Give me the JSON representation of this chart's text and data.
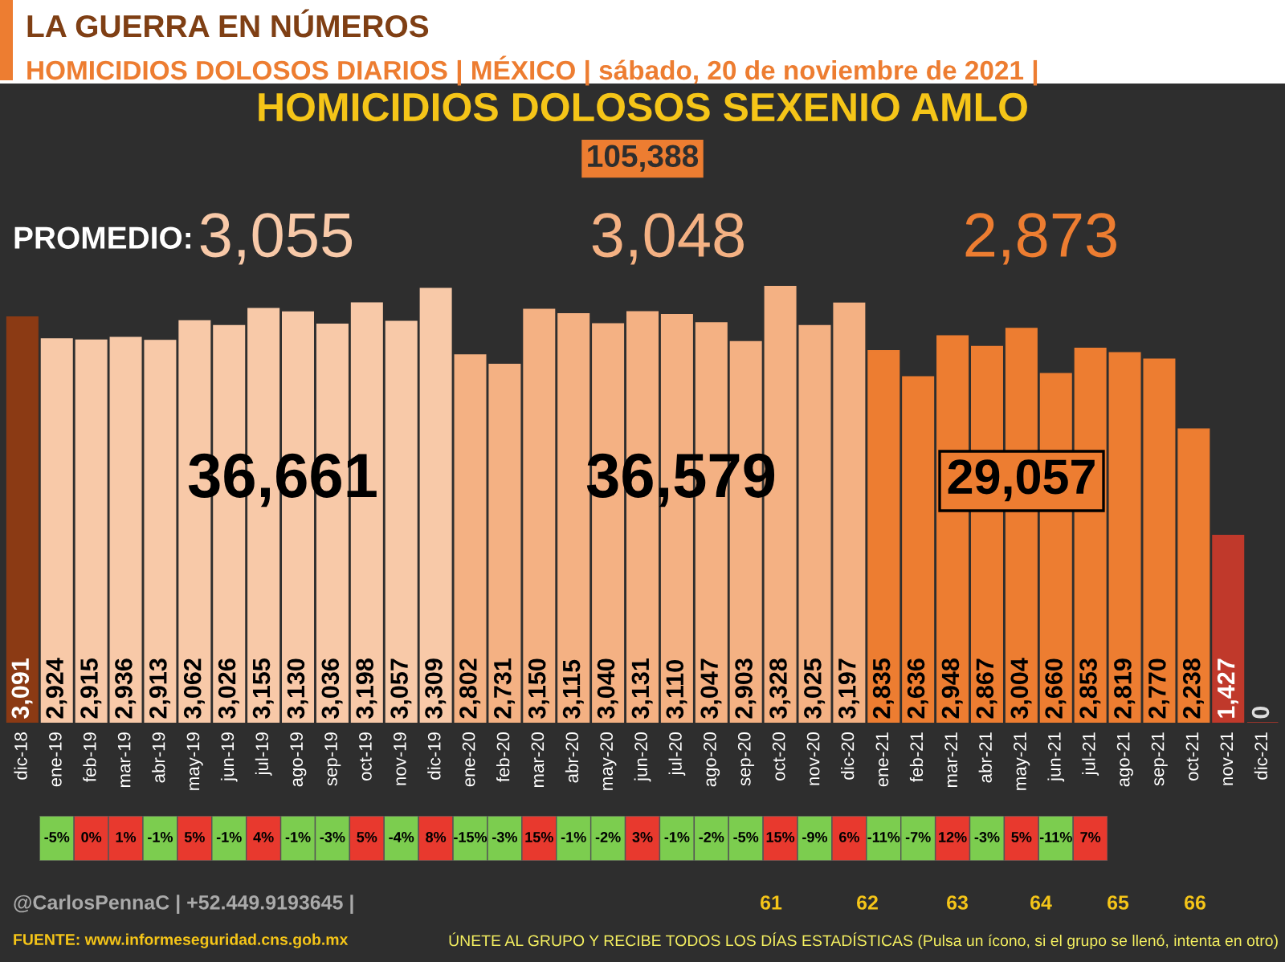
{
  "chart_data": [
    {
      "type": "bar",
      "title": "LA GUERRA EN NÚMEROS",
      "subtitle": "HOMICIDIOS DOLOSOS DIARIOS | MÉXICO | sábado, 20 de noviembre de 2021 |",
      "categories": [
        "dic-18",
        "ene-19",
        "feb-19",
        "mar-19",
        "abr-19",
        "may-19",
        "jun-19",
        "jul-19",
        "ago-19",
        "sep-19",
        "oct-19",
        "nov-19",
        "dic-19",
        "ene-20",
        "feb-20",
        "mar-20",
        "abr-20",
        "may-20",
        "jun-20",
        "jul-20",
        "ago-20",
        "sep-20",
        "oct-20",
        "nov-20",
        "dic-20",
        "ene-21",
        "feb-21",
        "mar-21",
        "abr-21",
        "may-21",
        "jun-21",
        "jul-21",
        "ago-21",
        "sep-21",
        "oct-21",
        "nov-21",
        "dic-21"
      ],
      "values": [
        3091,
        2924,
        2915,
        2936,
        2913,
        3062,
        3026,
        3155,
        3130,
        3036,
        3198,
        3057,
        3309,
        2802,
        2731,
        3150,
        3115,
        3040,
        3131,
        3110,
        3047,
        2903,
        3328,
        3025,
        3197,
        2835,
        2636,
        2948,
        2867,
        3004,
        2660,
        2853,
        2819,
        2770,
        2238,
        1427,
        0
      ],
      "colors": [
        "#8b3a14",
        "#f8c9a8",
        "#f8c9a8",
        "#f8c9a8",
        "#f8c9a8",
        "#f8c9a8",
        "#f8c9a8",
        "#f8c9a8",
        "#f8c9a8",
        "#f8c9a8",
        "#f8c9a8",
        "#f8c9a8",
        "#f8c9a8",
        "#f4b183",
        "#f4b183",
        "#f4b183",
        "#f4b183",
        "#f4b183",
        "#f4b183",
        "#f4b183",
        "#f4b183",
        "#f4b183",
        "#f4b183",
        "#f4b183",
        "#f4b183",
        "#ed7d31",
        "#ed7d31",
        "#ed7d31",
        "#ed7d31",
        "#ed7d31",
        "#ed7d31",
        "#ed7d31",
        "#ed7d31",
        "#ed7d31",
        "#ed7d31",
        "#c0392b",
        "#c0392b"
      ],
      "value_labels": [
        "3,091",
        "2,924",
        "2,915",
        "2,936",
        "2,913",
        "3,062",
        "3,026",
        "3,155",
        "3,130",
        "3,036",
        "3,198",
        "3,057",
        "3,309",
        "2,802",
        "2,731",
        "3,150",
        "3,115",
        "3,040",
        "3,131",
        "3,110",
        "3,047",
        "2,903",
        "3,328",
        "3,025",
        "3,197",
        "2,835",
        "2,636",
        "2,948",
        "2,867",
        "3,004",
        "2,660",
        "2,853",
        "2,819",
        "2,770",
        "2,238",
        "1,427",
        "0"
      ],
      "grid": false,
      "legend": false,
      "annotations": [
        "HOMICIDIOS DOLOSOS SEXENIO AMLO",
        "105,388",
        "PROMEDIO:",
        "3,055",
        "3,048",
        "2,873",
        "36,661",
        "36,579",
        "29,057",
        "@CarlosPennaC | +52.449.9193645 |",
        "61",
        "62",
        "63",
        "64",
        "65",
        "66",
        "FUENTE: www.informeseguridad.cns.gob.mx",
        "ÚNETE AL GRUPO Y RECIBE TODOS LOS DÍAS ESTADÍSTICAS (Pulsa un ícono, si el grupo se llenó, intenta en otro)"
      ]
    },
    {
      "type": "heatmap",
      "tick_labels": false,
      "categories": [
        null,
        null,
        null,
        null,
        null,
        null,
        null,
        null,
        null,
        null,
        null,
        null,
        null,
        null,
        null,
        null,
        null,
        null,
        null,
        null,
        null,
        null,
        null,
        null,
        null,
        null,
        null,
        null,
        null,
        null,
        null
      ],
      "y_categories": [
        null
      ],
      "cells": [
        [
          -5,
          0,
          1,
          -1,
          5,
          -1,
          4,
          -1,
          -3,
          5,
          -4,
          8,
          -15,
          -3,
          15,
          -1,
          -2,
          3,
          -1,
          -2,
          -5,
          15,
          -9,
          6,
          -11,
          -7,
          12,
          -3,
          5,
          -11,
          7
        ]
      ],
      "cell_labels": [
        [
          "-5%",
          "0%",
          "1%",
          "-1%",
          "5%",
          "-1%",
          "4%",
          "-1%",
          "-3%",
          "5%",
          "-4%",
          "8%",
          "-15%",
          "-3%",
          "15%",
          "-1%",
          "-2%",
          "3%",
          "-1%",
          "-2%",
          "-5%",
          "15%",
          "-9%",
          "6%",
          "-11%",
          "-7%",
          "12%",
          "-3%",
          "5%",
          "-11%",
          "7%"
        ]
      ]
    }
  ]
}
